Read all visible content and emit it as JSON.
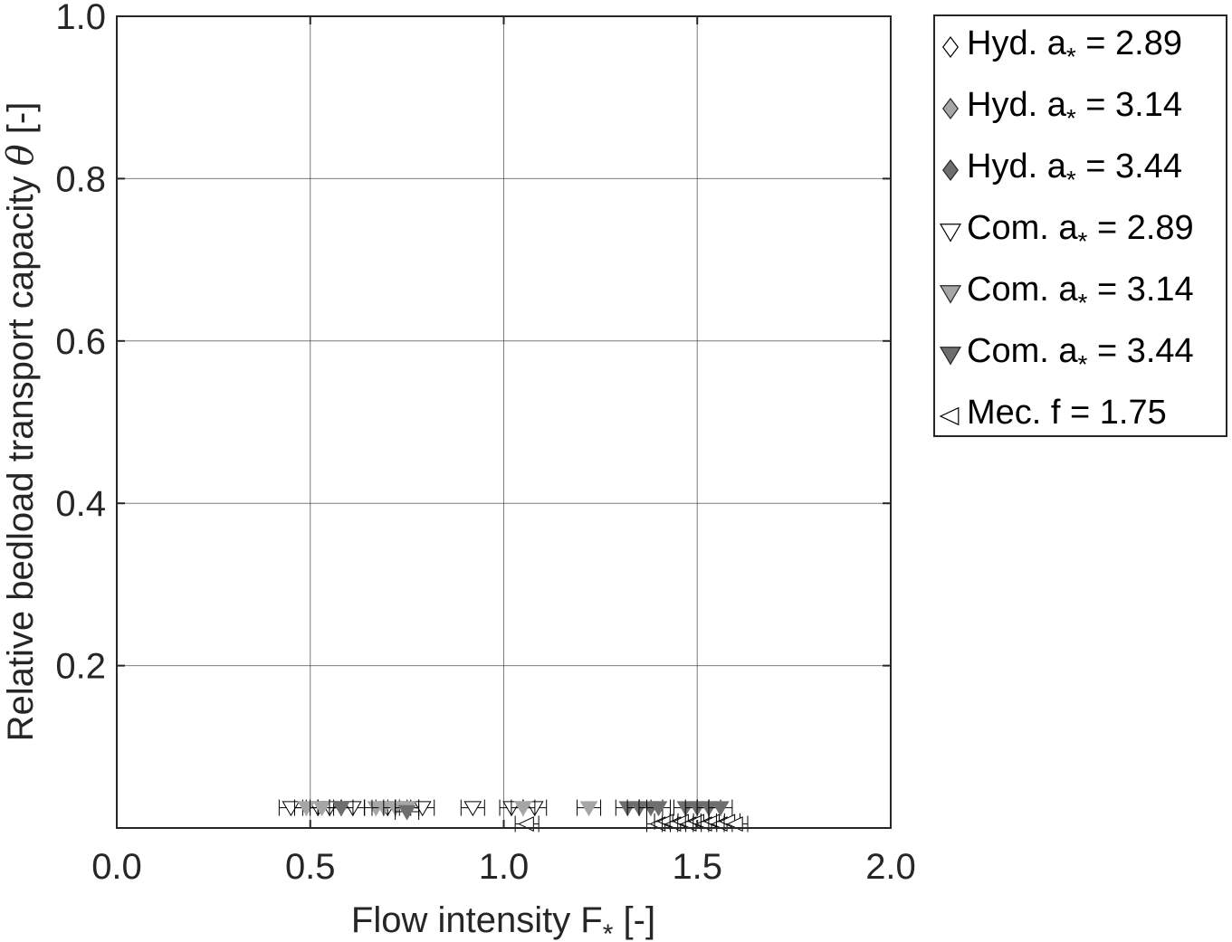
{
  "chart_data": {
    "type": "scatter",
    "title": "",
    "xlabel": "Flow intensity F",
    "xlabel_sub": "*",
    "xlabel_unit": " [-]",
    "ylabel": "Relative bedload transport capacity",
    "ylabel_symbol": "θ",
    "ylabel_unit": " [-]",
    "xlim": [
      0.0,
      2.0
    ],
    "ylim": [
      0.0,
      1.0
    ],
    "xticks": [
      0.0,
      0.5,
      1.0,
      1.5,
      2.0
    ],
    "xtick_labels": [
      "0.0",
      "0.5",
      "1.0",
      "1.5",
      "2.0"
    ],
    "yticks": [
      0.2,
      0.4,
      0.6,
      0.8,
      1.0
    ],
    "ytick_labels": [
      "0.2",
      "0.4",
      "0.6",
      "0.8",
      "1.0"
    ],
    "grid": true,
    "legend_position": "outside-top-right",
    "colors": {
      "series_light": "#ffffff",
      "series_mid": "#a6a6a6",
      "series_dark": "#6e6e6e",
      "marker_edge": "#000000",
      "grid": "#262626",
      "axes": "#262626"
    },
    "series": [
      {
        "name": "Hyd. a",
        "sub": "*",
        "suffix": " = 2.89",
        "marker": "diamond",
        "fill": "#ffffff",
        "x": [],
        "y": []
      },
      {
        "name": "Hyd. a",
        "sub": "*",
        "suffix": " = 3.14",
        "marker": "diamond",
        "fill": "#a6a6a6",
        "x": [],
        "y": []
      },
      {
        "name": "Hyd. a",
        "sub": "*",
        "suffix": " = 3.44",
        "marker": "diamond",
        "fill": "#6e6e6e",
        "x": [],
        "y": []
      },
      {
        "name": "Com. a",
        "sub": "*",
        "suffix": " = 2.89",
        "marker": "triangle-down",
        "fill": "#ffffff",
        "x": [
          0.45,
          0.52,
          0.55,
          0.58,
          0.61,
          0.7,
          0.75,
          0.79,
          0.92,
          1.02,
          1.08
        ],
        "y": [
          0.025,
          0.025,
          0.025,
          0.025,
          0.025,
          0.025,
          0.025,
          0.025,
          0.025,
          0.025,
          0.025
        ]
      },
      {
        "name": "Com. a",
        "sub": "*",
        "suffix": " = 3.14",
        "marker": "triangle-down",
        "fill": "#a6a6a6",
        "x": [
          0.49,
          0.53,
          0.67,
          0.69,
          0.72,
          0.75,
          1.05,
          1.22
        ],
        "y": [
          0.025,
          0.025,
          0.025,
          0.025,
          0.025,
          0.025,
          0.025,
          0.025
        ]
      },
      {
        "name": "Com. a",
        "sub": "*",
        "suffix": " = 3.44",
        "marker": "triangle-down",
        "fill": "#6e6e6e",
        "x": [
          0.58,
          0.75,
          1.32,
          1.35,
          1.38,
          1.4,
          1.47,
          1.5,
          1.53,
          1.56
        ],
        "y": [
          0.025,
          0.02,
          0.025,
          0.025,
          0.025,
          0.025,
          0.025,
          0.025,
          0.025,
          0.025
        ]
      },
      {
        "name": "Mec. f",
        "sub": "",
        "suffix": " = 1.75",
        "marker": "triangle-left",
        "fill": "#ffffff",
        "x": [
          1.06,
          1.4,
          1.42,
          1.44,
          1.46,
          1.48,
          1.5,
          1.52,
          1.54,
          1.56,
          1.58,
          1.6
        ],
        "y": [
          0.005,
          0.005,
          0.008,
          0.005,
          0.008,
          0.005,
          0.008,
          0.005,
          0.008,
          0.005,
          0.008,
          0.005
        ]
      }
    ]
  }
}
